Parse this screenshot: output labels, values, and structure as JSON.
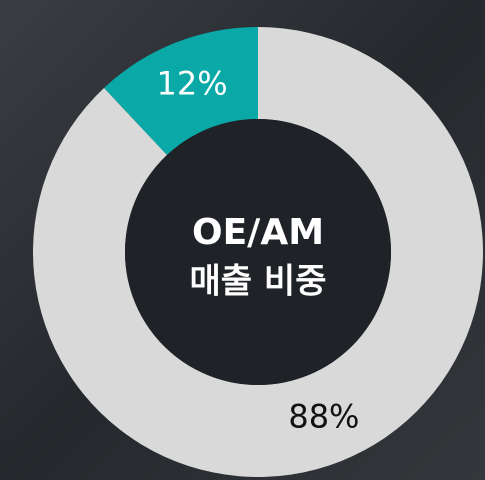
{
  "chart_data": {
    "type": "donut",
    "title_lines": [
      "OE/AM",
      "매출 비중"
    ],
    "categories": [
      null,
      null
    ],
    "values": [
      12,
      88
    ],
    "value_labels": [
      "12%",
      "88%"
    ],
    "colors": [
      "#0aa8a6",
      "#d9d9d9"
    ],
    "label_colors": [
      "#ffffff",
      "#111111"
    ]
  }
}
